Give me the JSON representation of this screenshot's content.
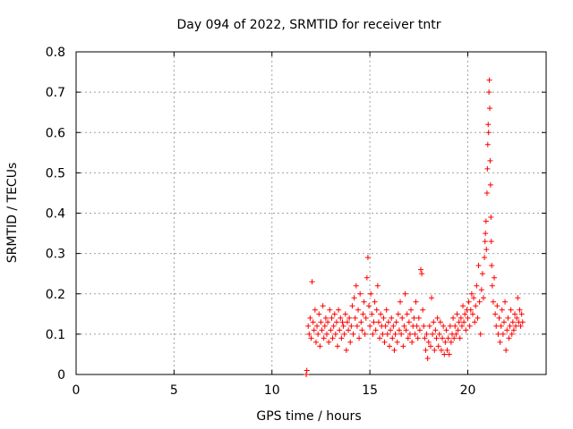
{
  "chart_data": {
    "type": "scatter",
    "title": "Day 094 of 2022, SRMTID for receiver tntr",
    "xlabel": "GPS time / hours",
    "ylabel": "SRMTID / TECUs",
    "xlim": [
      0,
      24
    ],
    "ylim": [
      0,
      0.8
    ],
    "x_ticks": [
      0,
      5,
      10,
      15,
      20
    ],
    "y_ticks": [
      0,
      0.1,
      0.2,
      0.3,
      0.4,
      0.5,
      0.6,
      0.7,
      0.8
    ],
    "x_tick_labels": [
      "0",
      "5",
      "10",
      "15",
      "20"
    ],
    "y_tick_labels": [
      "0",
      "0.1",
      "0.2",
      "0.3",
      "0.4",
      "0.5",
      "0.6",
      "0.7",
      "0.8"
    ],
    "grid": true,
    "marker": "+",
    "color": "#ff0000",
    "series": [
      {
        "name": "SRMTID",
        "points": [
          [
            11.75,
            0.0
          ],
          [
            11.78,
            0.01
          ],
          [
            11.85,
            0.12
          ],
          [
            11.9,
            0.1
          ],
          [
            11.95,
            0.14
          ],
          [
            12.0,
            0.09
          ],
          [
            12.05,
            0.23
          ],
          [
            12.1,
            0.13
          ],
          [
            12.15,
            0.11
          ],
          [
            12.2,
            0.16
          ],
          [
            12.25,
            0.08
          ],
          [
            12.3,
            0.12
          ],
          [
            12.35,
            0.1
          ],
          [
            12.4,
            0.15
          ],
          [
            12.45,
            0.07
          ],
          [
            12.5,
            0.13
          ],
          [
            12.55,
            0.11
          ],
          [
            12.6,
            0.17
          ],
          [
            12.65,
            0.09
          ],
          [
            12.7,
            0.12
          ],
          [
            12.75,
            0.14
          ],
          [
            12.8,
            0.1
          ],
          [
            12.85,
            0.13
          ],
          [
            12.9,
            0.08
          ],
          [
            12.95,
            0.16
          ],
          [
            13.0,
            0.11
          ],
          [
            13.05,
            0.14
          ],
          [
            13.1,
            0.09
          ],
          [
            13.15,
            0.12
          ],
          [
            13.2,
            0.15
          ],
          [
            13.25,
            0.1
          ],
          [
            13.3,
            0.13
          ],
          [
            13.35,
            0.07
          ],
          [
            13.4,
            0.16
          ],
          [
            13.45,
            0.11
          ],
          [
            13.5,
            0.14
          ],
          [
            13.55,
            0.09
          ],
          [
            13.6,
            0.13
          ],
          [
            13.65,
            0.12
          ],
          [
            13.7,
            0.1
          ],
          [
            13.75,
            0.15
          ],
          [
            13.8,
            0.06
          ],
          [
            13.85,
            0.13
          ],
          [
            13.9,
            0.11
          ],
          [
            13.95,
            0.14
          ],
          [
            14.0,
            0.08
          ],
          [
            14.05,
            0.12
          ],
          [
            14.1,
            0.17
          ],
          [
            14.15,
            0.1
          ],
          [
            14.2,
            0.19
          ],
          [
            14.25,
            0.14
          ],
          [
            14.3,
            0.22
          ],
          [
            14.35,
            0.12
          ],
          [
            14.4,
            0.16
          ],
          [
            14.45,
            0.09
          ],
          [
            14.5,
            0.2
          ],
          [
            14.55,
            0.13
          ],
          [
            14.6,
            0.11
          ],
          [
            14.65,
            0.15
          ],
          [
            14.7,
            0.18
          ],
          [
            14.75,
            0.1
          ],
          [
            14.8,
            0.14
          ],
          [
            14.85,
            0.24
          ],
          [
            14.9,
            0.29
          ],
          [
            14.95,
            0.17
          ],
          [
            15.0,
            0.12
          ],
          [
            15.05,
            0.2
          ],
          [
            15.1,
            0.15
          ],
          [
            15.15,
            0.1
          ],
          [
            15.2,
            0.13
          ],
          [
            15.25,
            0.18
          ],
          [
            15.3,
            0.11
          ],
          [
            15.35,
            0.16
          ],
          [
            15.4,
            0.22
          ],
          [
            15.45,
            0.13
          ],
          [
            15.5,
            0.09
          ],
          [
            15.55,
            0.15
          ],
          [
            15.6,
            0.12
          ],
          [
            15.65,
            0.1
          ],
          [
            15.7,
            0.14
          ],
          [
            15.75,
            0.08
          ],
          [
            15.8,
            0.12
          ],
          [
            15.85,
            0.16
          ],
          [
            15.9,
            0.1
          ],
          [
            15.95,
            0.13
          ],
          [
            16.0,
            0.07
          ],
          [
            16.05,
            0.11
          ],
          [
            16.1,
            0.14
          ],
          [
            16.15,
            0.09
          ],
          [
            16.2,
            0.12
          ],
          [
            16.25,
            0.06
          ],
          [
            16.3,
            0.1
          ],
          [
            16.35,
            0.13
          ],
          [
            16.4,
            0.08
          ],
          [
            16.45,
            0.15
          ],
          [
            16.5,
            0.11
          ],
          [
            16.55,
            0.18
          ],
          [
            16.6,
            0.1
          ],
          [
            16.65,
            0.14
          ],
          [
            16.7,
            0.07
          ],
          [
            16.75,
            0.12
          ],
          [
            16.8,
            0.2
          ],
          [
            16.85,
            0.11
          ],
          [
            16.9,
            0.15
          ],
          [
            16.95,
            0.09
          ],
          [
            17.0,
            0.13
          ],
          [
            17.05,
            0.1
          ],
          [
            17.1,
            0.16
          ],
          [
            17.15,
            0.08
          ],
          [
            17.2,
            0.12
          ],
          [
            17.25,
            0.14
          ],
          [
            17.3,
            0.1
          ],
          [
            17.35,
            0.18
          ],
          [
            17.4,
            0.12
          ],
          [
            17.45,
            0.09
          ],
          [
            17.5,
            0.14
          ],
          [
            17.55,
            0.11
          ],
          [
            17.6,
            0.26
          ],
          [
            17.65,
            0.25
          ],
          [
            17.7,
            0.16
          ],
          [
            17.75,
            0.12
          ],
          [
            17.8,
            0.09
          ],
          [
            17.85,
            0.06
          ],
          [
            17.9,
            0.1
          ],
          [
            17.95,
            0.04
          ],
          [
            18.0,
            0.08
          ],
          [
            18.05,
            0.12
          ],
          [
            18.1,
            0.07
          ],
          [
            18.15,
            0.19
          ],
          [
            18.2,
            0.1
          ],
          [
            18.25,
            0.13
          ],
          [
            18.3,
            0.06
          ],
          [
            18.35,
            0.11
          ],
          [
            18.4,
            0.09
          ],
          [
            18.45,
            0.14
          ],
          [
            18.5,
            0.07
          ],
          [
            18.55,
            0.1
          ],
          [
            18.6,
            0.13
          ],
          [
            18.65,
            0.06
          ],
          [
            18.7,
            0.09
          ],
          [
            18.75,
            0.12
          ],
          [
            18.8,
            0.05
          ],
          [
            18.85,
            0.08
          ],
          [
            18.9,
            0.11
          ],
          [
            18.95,
            0.06
          ],
          [
            19.0,
            0.09
          ],
          [
            19.05,
            0.05
          ],
          [
            19.1,
            0.12
          ],
          [
            19.15,
            0.08
          ],
          [
            19.2,
            0.1
          ],
          [
            19.25,
            0.14
          ],
          [
            19.3,
            0.09
          ],
          [
            19.35,
            0.12
          ],
          [
            19.4,
            0.1
          ],
          [
            19.45,
            0.15
          ],
          [
            19.5,
            0.11
          ],
          [
            19.55,
            0.13
          ],
          [
            19.6,
            0.09
          ],
          [
            19.65,
            0.14
          ],
          [
            19.7,
            0.12
          ],
          [
            19.75,
            0.17
          ],
          [
            19.8,
            0.13
          ],
          [
            19.85,
            0.15
          ],
          [
            19.9,
            0.11
          ],
          [
            19.95,
            0.16
          ],
          [
            20.0,
            0.14
          ],
          [
            20.05,
            0.18
          ],
          [
            20.1,
            0.12
          ],
          [
            20.15,
            0.16
          ],
          [
            20.2,
            0.2
          ],
          [
            20.25,
            0.15
          ],
          [
            20.3,
            0.19
          ],
          [
            20.35,
            0.13
          ],
          [
            20.4,
            0.17
          ],
          [
            20.45,
            0.22
          ],
          [
            20.5,
            0.14
          ],
          [
            20.55,
            0.27
          ],
          [
            20.6,
            0.18
          ],
          [
            20.65,
            0.1
          ],
          [
            20.7,
            0.21
          ],
          [
            20.75,
            0.25
          ],
          [
            20.8,
            0.19
          ],
          [
            20.85,
            0.29
          ],
          [
            20.88,
            0.33
          ],
          [
            20.9,
            0.35
          ],
          [
            20.93,
            0.38
          ],
          [
            20.95,
            0.31
          ],
          [
            20.98,
            0.45
          ],
          [
            21.0,
            0.51
          ],
          [
            21.02,
            0.57
          ],
          [
            21.04,
            0.62
          ],
          [
            21.06,
            0.6
          ],
          [
            21.08,
            0.7
          ],
          [
            21.1,
            0.73
          ],
          [
            21.12,
            0.66
          ],
          [
            21.14,
            0.53
          ],
          [
            21.16,
            0.47
          ],
          [
            21.18,
            0.39
          ],
          [
            21.2,
            0.33
          ],
          [
            21.22,
            0.27
          ],
          [
            21.25,
            0.22
          ],
          [
            21.3,
            0.18
          ],
          [
            21.35,
            0.24
          ],
          [
            21.4,
            0.15
          ],
          [
            21.45,
            0.12
          ],
          [
            21.5,
            0.17
          ],
          [
            21.55,
            0.1
          ],
          [
            21.6,
            0.14
          ],
          [
            21.65,
            0.08
          ],
          [
            21.7,
            0.12
          ],
          [
            21.75,
            0.16
          ],
          [
            21.8,
            0.1
          ],
          [
            21.85,
            0.13
          ],
          [
            21.9,
            0.18
          ],
          [
            21.95,
            0.06
          ],
          [
            22.0,
            0.11
          ],
          [
            22.05,
            0.14
          ],
          [
            22.1,
            0.09
          ],
          [
            22.15,
            0.12
          ],
          [
            22.2,
            0.16
          ],
          [
            22.25,
            0.1
          ],
          [
            22.3,
            0.13
          ],
          [
            22.35,
            0.11
          ],
          [
            22.4,
            0.15
          ],
          [
            22.45,
            0.12
          ],
          [
            22.5,
            0.14
          ],
          [
            22.55,
            0.19
          ],
          [
            22.6,
            0.13
          ],
          [
            22.65,
            0.16
          ],
          [
            22.7,
            0.12
          ],
          [
            22.75,
            0.15
          ],
          [
            22.8,
            0.13
          ]
        ]
      }
    ]
  }
}
